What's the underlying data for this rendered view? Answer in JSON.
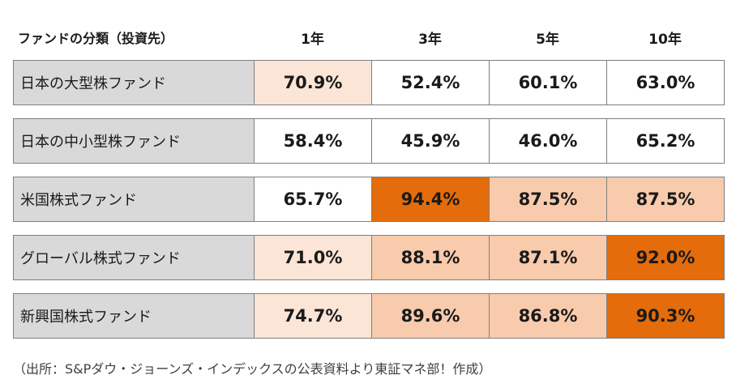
{
  "header": {
    "category": "ファンドの分類（投資先）",
    "columns": [
      "1年",
      "3年",
      "5年",
      "10年"
    ]
  },
  "rows": [
    {
      "name": "日本の大型株ファンド",
      "labels": [
        "70.9%",
        "52.4%",
        "60.1%",
        "63.0%"
      ],
      "shades": [
        "light",
        "white",
        "white",
        "white"
      ]
    },
    {
      "name": "日本の中小型株ファンド",
      "labels": [
        "58.4%",
        "45.9%",
        "46.0%",
        "65.2%"
      ],
      "shades": [
        "white",
        "white",
        "white",
        "white"
      ]
    },
    {
      "name": "米国株式ファンド",
      "labels": [
        "65.7%",
        "94.4%",
        "87.5%",
        "87.5%"
      ],
      "shades": [
        "white",
        "dark",
        "medium",
        "medium"
      ]
    },
    {
      "name": "グローバル株式ファンド",
      "labels": [
        "71.0%",
        "88.1%",
        "87.1%",
        "92.0%"
      ],
      "shades": [
        "light",
        "medium",
        "medium",
        "dark"
      ]
    },
    {
      "name": "新興国株式ファンド",
      "labels": [
        "74.7%",
        "89.6%",
        "86.8%",
        "90.3%"
      ],
      "shades": [
        "light",
        "medium",
        "medium",
        "dark"
      ]
    }
  ],
  "colors": {
    "white": "#ffffff",
    "light": "#fbe5d6",
    "medium": "#f8cbad",
    "dark": "#e46c0a",
    "category_bg": "#d9d9d9",
    "border": "#7f7f7f"
  },
  "chart_data": {
    "type": "table",
    "columns": [
      "1年",
      "3年",
      "5年",
      "10年"
    ],
    "rows": [
      {
        "category": "日本の大型株ファンド",
        "values": [
          70.9,
          52.4,
          60.1,
          63.0
        ]
      },
      {
        "category": "日本の中小型株ファンド",
        "values": [
          58.4,
          45.9,
          46.0,
          65.2
        ]
      },
      {
        "category": "米国株式ファンド",
        "values": [
          65.7,
          94.4,
          87.5,
          87.5
        ]
      },
      {
        "category": "グローバル株式ファンド",
        "values": [
          71.0,
          88.1,
          87.1,
          92.0
        ]
      },
      {
        "category": "新興国株式ファンド",
        "values": [
          74.7,
          89.6,
          86.8,
          90.3
        ]
      }
    ]
  },
  "source": "（出所：S&Pダウ・ジョーンズ・インデックスの公表資料より東証マネ部！作成）"
}
